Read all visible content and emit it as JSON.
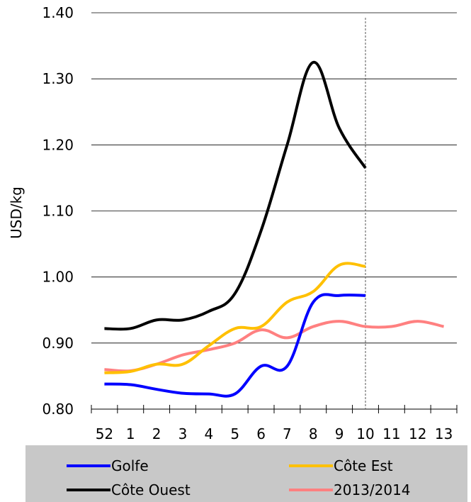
{
  "chart_data": {
    "type": "line",
    "title": "",
    "xlabel": "",
    "ylabel": "USD/kg",
    "ylim": [
      0.8,
      1.4
    ],
    "yticks": [
      "0.80",
      "0.90",
      "1.00",
      "1.10",
      "1.20",
      "1.30",
      "1.40"
    ],
    "categories": [
      "52",
      "1",
      "2",
      "3",
      "4",
      "5",
      "6",
      "7",
      "8",
      "9",
      "10",
      "11",
      "12",
      "13"
    ],
    "grid": true,
    "marker_line_at": "10",
    "legend_position": "bottom",
    "series": [
      {
        "name": "Golfe",
        "color": "#0000FF",
        "values": [
          0.838,
          0.837,
          0.83,
          0.824,
          0.823,
          0.823,
          0.865,
          0.865,
          0.962,
          0.972,
          0.972,
          null,
          null,
          null
        ]
      },
      {
        "name": "Côte Est",
        "color": "#FFC000",
        "values": [
          0.855,
          0.857,
          0.868,
          0.868,
          0.896,
          0.922,
          0.925,
          0.962,
          0.978,
          1.018,
          1.016,
          null,
          null,
          null
        ]
      },
      {
        "name": "Côte Ouest",
        "color": "#000000",
        "values": [
          0.922,
          0.922,
          0.935,
          0.935,
          0.948,
          0.975,
          1.07,
          1.2,
          1.325,
          1.225,
          1.165,
          null,
          null,
          null
        ]
      },
      {
        "name": "2013/2014",
        "color": "#FF8080",
        "values": [
          0.86,
          0.858,
          0.868,
          0.882,
          0.89,
          0.9,
          0.92,
          0.908,
          0.925,
          0.933,
          0.925,
          0.925,
          0.933,
          0.925
        ]
      }
    ]
  }
}
